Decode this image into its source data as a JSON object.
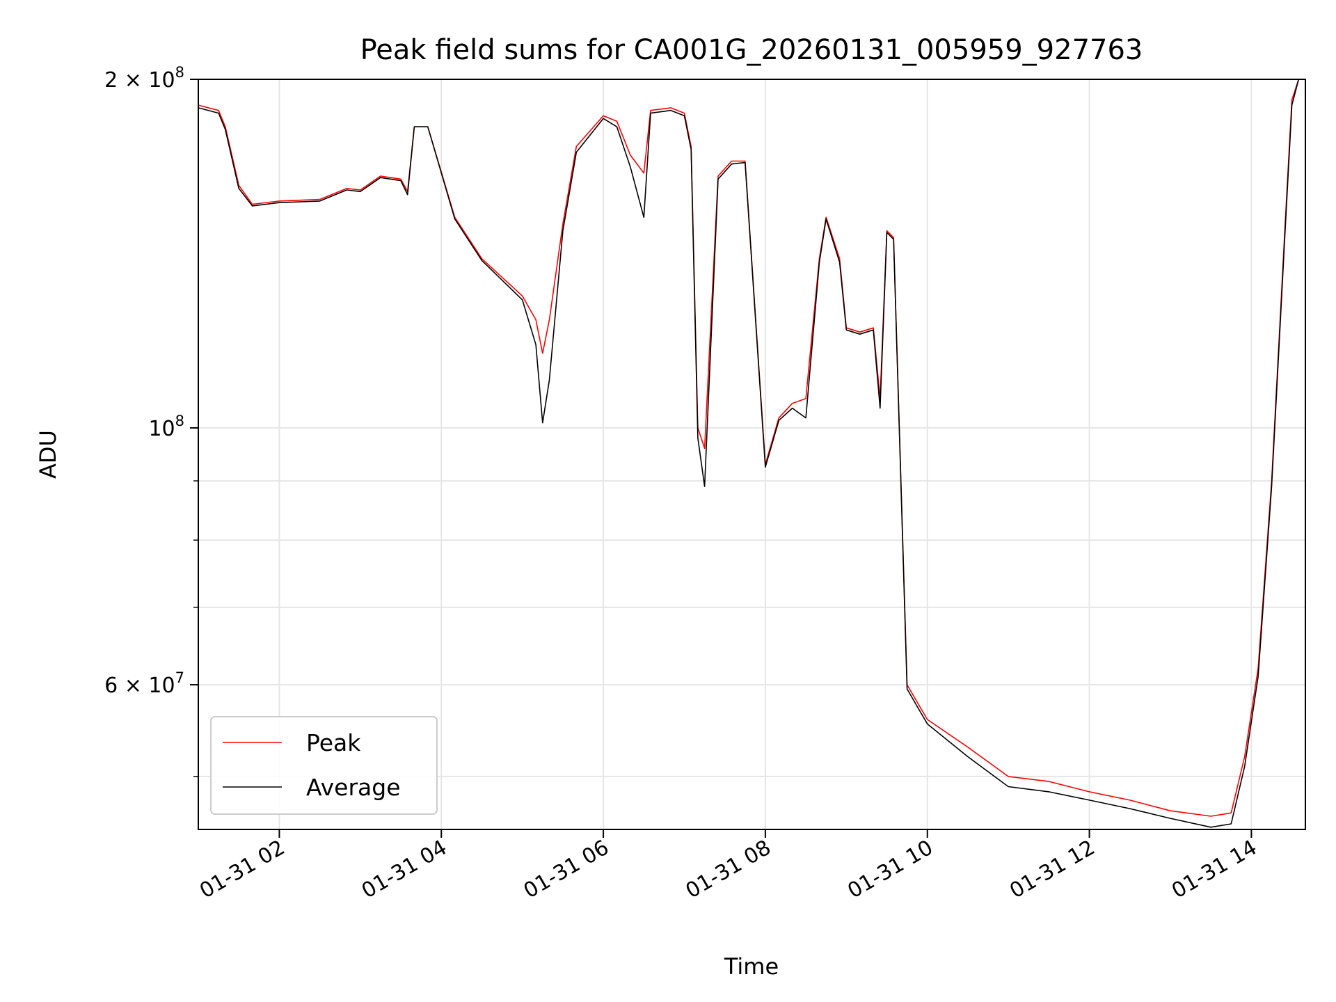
{
  "chart_data": {
    "type": "line",
    "title": "Peak field sums for CA001G_20260131_005959_927763",
    "xlabel": "Time",
    "ylabel": "ADU",
    "y_scale": "log",
    "ylim": [
      45000000,
      200000000
    ],
    "xlim": [
      "01-31 01:00",
      "01-31 14:40"
    ],
    "grid": true,
    "legend_position": "lower-left",
    "x_ticks": [
      "01-31 02",
      "01-31 04",
      "01-31 06",
      "01-31 08",
      "01-31 10",
      "01-31 12",
      "01-31 14"
    ],
    "y_ticks": [
      {
        "label": "2 × 10^8",
        "base": "2 × 10",
        "exp": "8"
      },
      {
        "label": "10^8",
        "base": "10",
        "exp": "8"
      },
      {
        "label": "6 × 10^7",
        "base": "6 × 10",
        "exp": "7"
      }
    ],
    "series": [
      {
        "name": "Peak",
        "color": "#ff0000",
        "points": [
          [
            "01-31 01:00",
            190000000
          ],
          [
            "01-31 01:15",
            188000000
          ],
          [
            "01-31 01:20",
            182000000
          ],
          [
            "01-31 01:30",
            162000000
          ],
          [
            "01-31 01:40",
            156000000
          ],
          [
            "01-31 02:00",
            157000000
          ],
          [
            "01-31 02:30",
            157500000
          ],
          [
            "01-31 02:50",
            161000000
          ],
          [
            "01-31 03:00",
            160500000
          ],
          [
            "01-31 03:15",
            165000000
          ],
          [
            "01-31 03:30",
            164000000
          ],
          [
            "01-31 03:35",
            160000000
          ],
          [
            "01-31 03:40",
            182000000
          ],
          [
            "01-31 03:50",
            182000000
          ],
          [
            "01-31 04:10",
            152000000
          ],
          [
            "01-31 04:30",
            140000000
          ],
          [
            "01-31 05:00",
            130000000
          ],
          [
            "01-31 05:10",
            124000000
          ],
          [
            "01-31 05:15",
            116000000
          ],
          [
            "01-31 05:20",
            124000000
          ],
          [
            "01-31 05:30",
            150000000
          ],
          [
            "01-31 05:40",
            175000000
          ],
          [
            "01-31 06:00",
            186000000
          ],
          [
            "01-31 06:10",
            184000000
          ],
          [
            "01-31 06:20",
            172000000
          ],
          [
            "01-31 06:30",
            166000000
          ],
          [
            "01-31 06:35",
            188000000
          ],
          [
            "01-31 06:50",
            189000000
          ],
          [
            "01-31 07:00",
            187000000
          ],
          [
            "01-31 07:05",
            175000000
          ],
          [
            "01-31 07:10",
            100000000
          ],
          [
            "01-31 07:15",
            96000000
          ],
          [
            "01-31 07:25",
            165000000
          ],
          [
            "01-31 07:35",
            170000000
          ],
          [
            "01-31 07:45",
            170000000
          ],
          [
            "01-31 08:00",
            93000000
          ],
          [
            "01-31 08:10",
            102000000
          ],
          [
            "01-31 08:20",
            105000000
          ],
          [
            "01-31 08:30",
            106000000
          ],
          [
            "01-31 08:40",
            140000000
          ],
          [
            "01-31 08:45",
            152000000
          ],
          [
            "01-31 08:55",
            140000000
          ],
          [
            "01-31 09:00",
            122000000
          ],
          [
            "01-31 09:10",
            121000000
          ],
          [
            "01-31 09:20",
            122000000
          ],
          [
            "01-31 09:25",
            106000000
          ],
          [
            "01-31 09:30",
            148000000
          ],
          [
            "01-31 09:35",
            146000000
          ],
          [
            "01-31 09:45",
            60000000
          ],
          [
            "01-31 10:00",
            56000000
          ],
          [
            "01-31 10:30",
            53000000
          ],
          [
            "01-31 11:00",
            50000000
          ],
          [
            "01-31 11:30",
            49500000
          ],
          [
            "01-31 12:00",
            48500000
          ],
          [
            "01-31 12:30",
            47700000
          ],
          [
            "01-31 13:00",
            46700000
          ],
          [
            "01-31 13:30",
            46200000
          ],
          [
            "01-31 13:45",
            46500000
          ],
          [
            "01-31 13:55",
            52000000
          ],
          [
            "01-31 14:05",
            62000000
          ],
          [
            "01-31 14:15",
            90000000
          ],
          [
            "01-31 14:25",
            150000000
          ],
          [
            "01-31 14:30",
            192000000
          ],
          [
            "01-31 14:35",
            200000000
          ]
        ]
      },
      {
        "name": "Average",
        "color": "#000000",
        "points": [
          [
            "01-31 01:00",
            189000000
          ],
          [
            "01-31 01:15",
            187000000
          ],
          [
            "01-31 01:20",
            181000000
          ],
          [
            "01-31 01:30",
            161000000
          ],
          [
            "01-31 01:40",
            155500000
          ],
          [
            "01-31 02:00",
            156500000
          ],
          [
            "01-31 02:30",
            157000000
          ],
          [
            "01-31 02:50",
            160500000
          ],
          [
            "01-31 03:00",
            160000000
          ],
          [
            "01-31 03:15",
            164500000
          ],
          [
            "01-31 03:30",
            163500000
          ],
          [
            "01-31 03:35",
            159000000
          ],
          [
            "01-31 03:40",
            182000000
          ],
          [
            "01-31 03:50",
            182000000
          ],
          [
            "01-31 04:10",
            151500000
          ],
          [
            "01-31 04:30",
            139500000
          ],
          [
            "01-31 05:00",
            129000000
          ],
          [
            "01-31 05:10",
            118000000
          ],
          [
            "01-31 05:15",
            101000000
          ],
          [
            "01-31 05:20",
            110000000
          ],
          [
            "01-31 05:30",
            148000000
          ],
          [
            "01-31 05:40",
            173000000
          ],
          [
            "01-31 06:00",
            185000000
          ],
          [
            "01-31 06:10",
            182000000
          ],
          [
            "01-31 06:20",
            168000000
          ],
          [
            "01-31 06:30",
            152000000
          ],
          [
            "01-31 06:35",
            187000000
          ],
          [
            "01-31 06:50",
            188000000
          ],
          [
            "01-31 07:00",
            186000000
          ],
          [
            "01-31 07:05",
            174000000
          ],
          [
            "01-31 07:10",
            98000000
          ],
          [
            "01-31 07:15",
            89000000
          ],
          [
            "01-31 07:25",
            164000000
          ],
          [
            "01-31 07:35",
            169000000
          ],
          [
            "01-31 07:45",
            169500000
          ],
          [
            "01-31 08:00",
            92500000
          ],
          [
            "01-31 08:10",
            101500000
          ],
          [
            "01-31 08:20",
            104000000
          ],
          [
            "01-31 08:30",
            102000000
          ],
          [
            "01-31 08:40",
            139000000
          ],
          [
            "01-31 08:45",
            151500000
          ],
          [
            "01-31 08:55",
            139000000
          ],
          [
            "01-31 09:00",
            121500000
          ],
          [
            "01-31 09:10",
            120500000
          ],
          [
            "01-31 09:20",
            121500000
          ],
          [
            "01-31 09:25",
            104000000
          ],
          [
            "01-31 09:30",
            147500000
          ],
          [
            "01-31 09:35",
            145500000
          ],
          [
            "01-31 09:45",
            59500000
          ],
          [
            "01-31 10:00",
            55500000
          ],
          [
            "01-31 10:30",
            52000000
          ],
          [
            "01-31 11:00",
            49000000
          ],
          [
            "01-31 11:30",
            48500000
          ],
          [
            "01-31 12:00",
            47700000
          ],
          [
            "01-31 12:30",
            46900000
          ],
          [
            "01-31 13:00",
            46000000
          ],
          [
            "01-31 13:30",
            45200000
          ],
          [
            "01-31 13:45",
            45500000
          ],
          [
            "01-31 13:55",
            51000000
          ],
          [
            "01-31 14:05",
            61000000
          ],
          [
            "01-31 14:15",
            89000000
          ],
          [
            "01-31 14:25",
            148000000
          ],
          [
            "01-31 14:30",
            190000000
          ],
          [
            "01-31 14:35",
            200000000
          ]
        ]
      }
    ]
  }
}
